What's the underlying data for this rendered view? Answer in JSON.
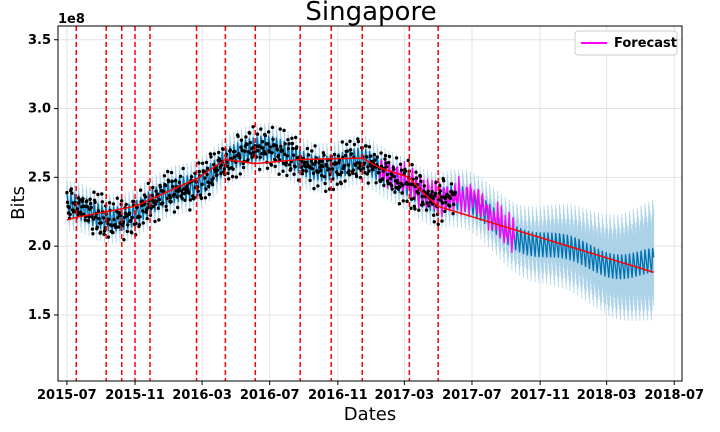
{
  "chart_data": {
    "type": "line",
    "title": "Singapore",
    "xlabel": "Dates",
    "ylabel": "Bits",
    "y_offset_label": "1e8",
    "x_range": [
      "2015-06-15",
      "2018-07-15"
    ],
    "ylim": [
      1.02,
      3.6
    ],
    "grid": true,
    "legend_placement": "top-right",
    "x_ticks": [
      {
        "date": "2015-07-01",
        "label": "2015-07"
      },
      {
        "date": "2015-11-01",
        "label": "2015-11"
      },
      {
        "date": "2016-03-01",
        "label": "2016-03"
      },
      {
        "date": "2016-07-01",
        "label": "2016-07"
      },
      {
        "date": "2016-11-01",
        "label": "2016-11"
      },
      {
        "date": "2017-03-01",
        "label": "2017-03"
      },
      {
        "date": "2017-07-01",
        "label": "2017-07"
      },
      {
        "date": "2017-11-01",
        "label": "2017-11"
      },
      {
        "date": "2018-03-01",
        "label": "2018-03"
      },
      {
        "date": "2018-07-01",
        "label": "2018-07"
      }
    ],
    "y_ticks": [
      {
        "value": 1.5,
        "label": "1.5"
      },
      {
        "value": 2.0,
        "label": "2.0"
      },
      {
        "value": 2.5,
        "label": "2.5"
      },
      {
        "value": 3.0,
        "label": "3.0"
      },
      {
        "value": 3.5,
        "label": "3.5"
      }
    ],
    "changepoints": [
      "2015-07-18",
      "2015-09-10",
      "2015-10-08",
      "2015-11-01",
      "2015-11-28",
      "2016-02-20",
      "2016-04-12",
      "2016-06-05",
      "2016-08-25",
      "2016-10-20",
      "2016-12-15",
      "2017-03-10",
      "2017-05-01"
    ],
    "trend": {
      "name": "trend",
      "points": [
        [
          "2015-07-01",
          2.19
        ],
        [
          "2015-07-18",
          2.21
        ],
        [
          "2015-11-01",
          2.29
        ],
        [
          "2016-02-20",
          2.49
        ],
        [
          "2016-04-12",
          2.63
        ],
        [
          "2016-06-05",
          2.6
        ],
        [
          "2016-08-25",
          2.63
        ],
        [
          "2016-12-15",
          2.64
        ],
        [
          "2017-01-15",
          2.57
        ],
        [
          "2017-03-10",
          2.5
        ],
        [
          "2017-04-01",
          2.4
        ],
        [
          "2017-05-01",
          2.29
        ],
        [
          "2018-05-25",
          1.81
        ]
      ]
    },
    "forecast_band": {
      "start": "2015-07-01",
      "end": "2018-05-25",
      "note": "uncertainty interval"
    },
    "actuals": {
      "start": "2015-07-01",
      "end": "2017-01-15"
    },
    "series": [
      {
        "name": "Forecast",
        "color": "#ff00ff",
        "start": "2017-01-15",
        "end": "2017-09-15"
      }
    ],
    "legend": [
      "Forecast"
    ],
    "colors": {
      "trend": "#ff0000",
      "changepoint": "#ff0000",
      "fit": "#0072b2",
      "band": "#a6cfe6",
      "actual": "#000000",
      "forecast": "#ff00ff",
      "grid": "#e3e3e3"
    }
  }
}
